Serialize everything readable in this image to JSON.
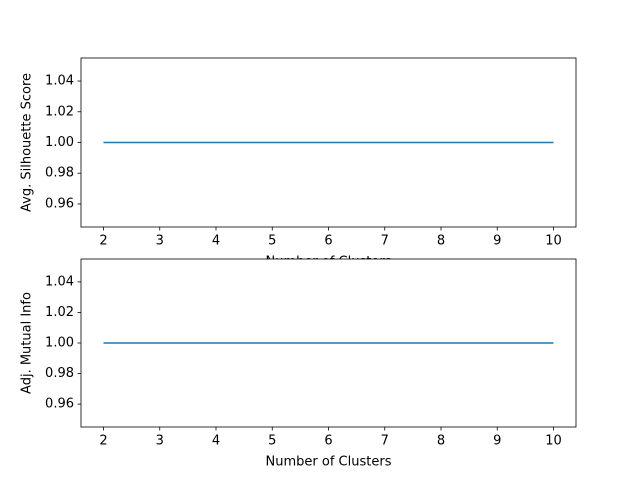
{
  "chart_data": [
    {
      "type": "line",
      "xlabel": "Number of Clusters",
      "ylabel": "Avg. Silhouette Score",
      "x": [
        2,
        3,
        4,
        5,
        6,
        7,
        8,
        9,
        10
      ],
      "series": [
        {
          "color": "#1f77b4",
          "values": [
            1,
            1,
            1,
            1,
            1,
            1,
            1,
            1,
            1
          ]
        }
      ],
      "xlim": [
        1.6,
        10.4
      ],
      "xticks": [
        2,
        3,
        4,
        5,
        6,
        7,
        8,
        9,
        10
      ],
      "ylim": [
        0.945,
        1.055
      ],
      "yticks": [
        0.96,
        0.98,
        {
          "value": 1,
          "label": "1.00"
        },
        1.02,
        1.04
      ],
      "grid": false
    },
    {
      "type": "line",
      "xlabel": "Number of Clusters",
      "ylabel": "Adj. Mutual Info",
      "x": [
        2,
        3,
        4,
        5,
        6,
        7,
        8,
        9,
        10
      ],
      "series": [
        {
          "color": "#1f77b4",
          "values": [
            1,
            1,
            1,
            1,
            1,
            1,
            1,
            1,
            1
          ]
        }
      ],
      "xlim": [
        1.6,
        10.4
      ],
      "xticks": [
        2,
        3,
        4,
        5,
        6,
        7,
        8,
        9,
        10
      ],
      "ylim": [
        0.945,
        1.055
      ],
      "yticks": [
        0.96,
        0.98,
        {
          "value": 1,
          "label": "1.00"
        },
        1.02,
        1.04
      ],
      "grid": false
    }
  ]
}
